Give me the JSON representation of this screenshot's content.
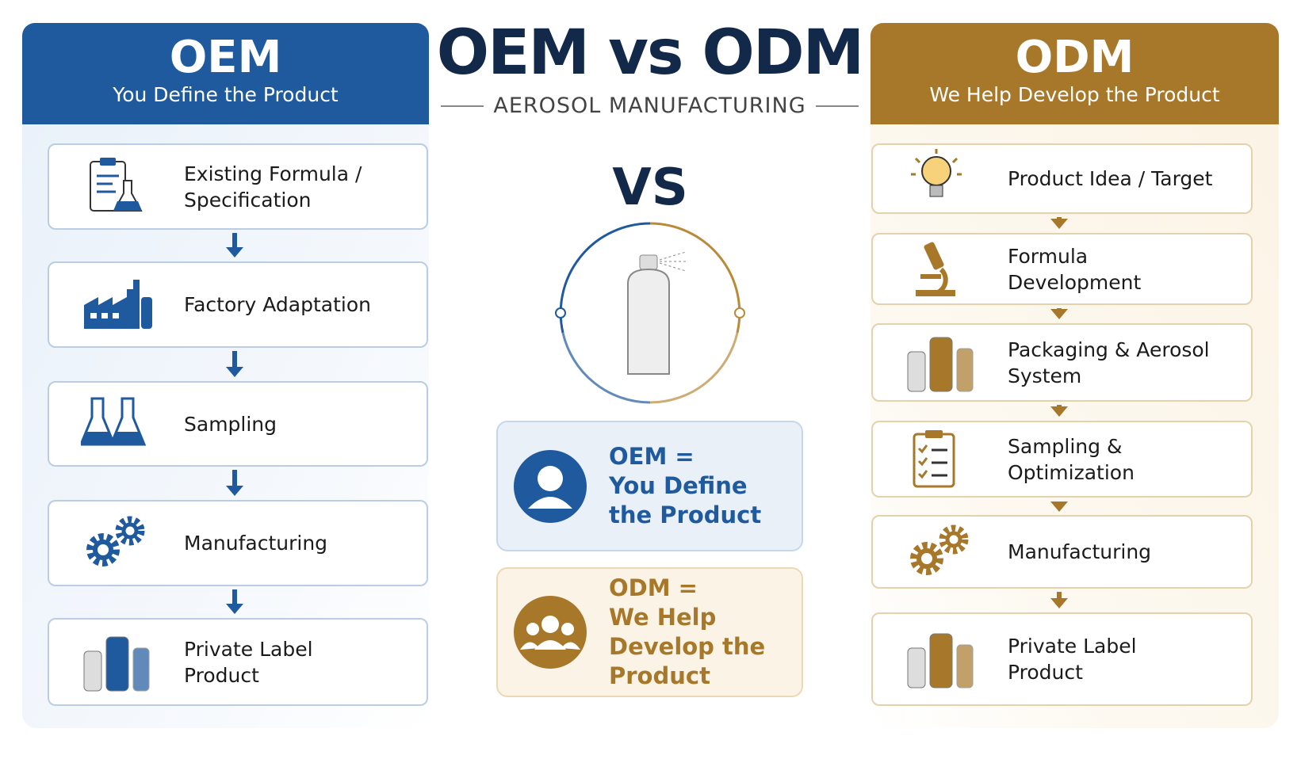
{
  "title": "OEM vs ODM",
  "subtitle": "AEROSOL MANUFACTURING",
  "center_label": "VS",
  "oem": {
    "title": "OEM",
    "subtitle": "You Define the Product",
    "steps": [
      "Existing Formula / Specification",
      "Factory Adaptation",
      "Sampling",
      "Manufacturing",
      "Private Label Product"
    ]
  },
  "odm": {
    "title": "ODM",
    "subtitle": "We Help Develop the Product",
    "steps": [
      "Product Idea / Target",
      "Formula Development",
      "Packaging & Aerosol System",
      "Sampling & Optimization",
      "Manufacturing",
      "Private Label Product"
    ]
  },
  "summary": [
    {
      "term": "OEM =",
      "definition": "You Define the Product"
    },
    {
      "term": "ODM =",
      "definition": "We Help Develop the Product"
    }
  ]
}
